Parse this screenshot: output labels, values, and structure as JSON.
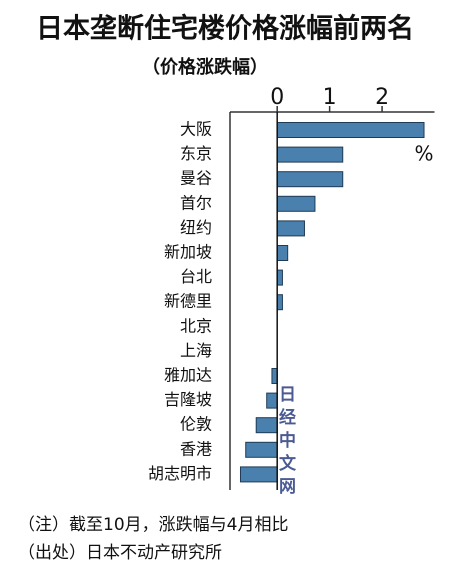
{
  "chart_data": {
    "type": "bar",
    "orientation": "horizontal",
    "title": "日本垄断住宅楼价格涨幅前两名",
    "subtitle": "（价格涨跌幅）",
    "unit": "%",
    "categories": [
      "大阪",
      "东京",
      "曼谷",
      "首尔",
      "纽约",
      "新加坡",
      "台北",
      "新德里",
      "北京",
      "上海",
      "雅加达",
      "吉隆坡",
      "伦敦",
      "香港",
      "胡志明市"
    ],
    "values": [
      2.8,
      1.25,
      1.25,
      0.72,
      0.52,
      0.2,
      0.1,
      0.1,
      0,
      0,
      -0.1,
      -0.2,
      -0.4,
      -0.6,
      -0.7
    ],
    "color": "#4a80ad",
    "xlim": [
      -0.9,
      3.0
    ],
    "xticks": [
      0,
      1,
      2
    ],
    "notes": [
      "（注）截至10月，涨跌幅与4月相比",
      "（出处）日本不动产研究所"
    ],
    "watermark": "日经中文网"
  }
}
